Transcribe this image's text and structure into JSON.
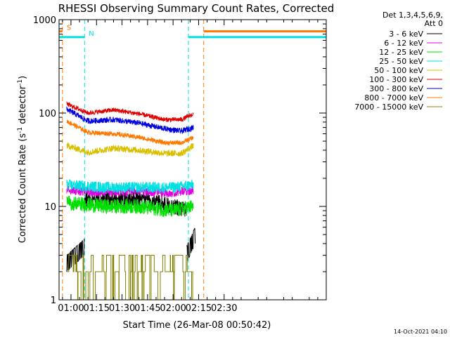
{
  "chart_data": {
    "type": "line",
    "title": "RHESSI Observing Summary Count Rates, Corrected",
    "xlabel": "Start Time (26-Mar-08 00:50:42)",
    "ylabel_main": "Corrected Count Rate (s",
    "ylabel_sup1": "-1",
    "ylabel_mid": " detector",
    "ylabel_sup2": "-1",
    "ylabel_end": ")",
    "y_scale": "log",
    "ylim": [
      1,
      1000
    ],
    "y_ticks": [
      {
        "value": 1,
        "label": "1"
      },
      {
        "value": 10,
        "label": "10"
      },
      {
        "value": 100,
        "label": "100"
      },
      {
        "value": 1000,
        "label": "1000"
      }
    ],
    "x_range_min": [
      -7,
      150
    ],
    "x_ticks": [
      {
        "value": 0,
        "label": "01:00"
      },
      {
        "value": 15,
        "label": "01:15"
      },
      {
        "value": 30,
        "label": "01:30"
      },
      {
        "value": 45,
        "label": "01:45"
      },
      {
        "value": 60,
        "label": "02:00"
      },
      {
        "value": 75,
        "label": "02:15"
      },
      {
        "value": 90,
        "label": "02:30"
      }
    ],
    "legend_header": [
      "Det 1,3,4,5,6,9,",
      "Att 0"
    ],
    "legend_position": "right",
    "series": [
      {
        "name": "3 - 6 keV",
        "color": "#000000",
        "low": [
          [
            -2.5,
            2
          ],
          [
            8,
            3
          ]
        ],
        "high": [
          [
            20,
            12
          ],
          [
            40,
            12
          ],
          [
            60,
            10
          ],
          [
            68,
            9
          ]
        ],
        "high_noise": 0.09,
        "tail": [
          [
            68,
            2.5
          ],
          [
            73,
            4
          ]
        ]
      },
      {
        "name": "6 - 12 keV",
        "color": "#e000e0",
        "high": [
          [
            -2.5,
            15
          ],
          [
            20,
            14
          ],
          [
            40,
            14.5
          ],
          [
            60,
            14
          ],
          [
            72,
            15
          ]
        ],
        "high_noise": 0.05
      },
      {
        "name": "12 - 25 keV",
        "color": "#00e000",
        "high": [
          [
            -2.5,
            11
          ],
          [
            20,
            10
          ],
          [
            40,
            10
          ],
          [
            60,
            9
          ],
          [
            72,
            10
          ]
        ],
        "high_noise": 0.08
      },
      {
        "name": "25 - 50 keV",
        "color": "#00e0e0",
        "high": [
          [
            -2.5,
            17
          ],
          [
            20,
            16
          ],
          [
            40,
            16
          ],
          [
            60,
            16
          ],
          [
            72,
            17
          ]
        ],
        "high_noise": 0.06
      },
      {
        "name": "50 - 100 keV",
        "color": "#d8c000",
        "high": [
          [
            -2.5,
            45
          ],
          [
            10,
            38
          ],
          [
            25,
            42
          ],
          [
            40,
            40
          ],
          [
            55,
            37
          ],
          [
            65,
            37
          ],
          [
            72,
            45
          ]
        ],
        "high_noise": 0.035
      },
      {
        "name": "100 - 300 keV",
        "color": "#e00000",
        "high": [
          [
            -2.5,
            125
          ],
          [
            10,
            100
          ],
          [
            25,
            108
          ],
          [
            40,
            98
          ],
          [
            55,
            85
          ],
          [
            65,
            85
          ],
          [
            72,
            98
          ]
        ],
        "high_noise": 0.025
      },
      {
        "name": "300 - 800 keV",
        "color": "#0000e0",
        "high": [
          [
            -2.5,
            110
          ],
          [
            10,
            82
          ],
          [
            25,
            85
          ],
          [
            40,
            78
          ],
          [
            55,
            68
          ],
          [
            65,
            64
          ],
          [
            72,
            70
          ]
        ],
        "high_noise": 0.03
      },
      {
        "name": "800 - 7000 keV",
        "color": "#ff7800",
        "high": [
          [
            -2.5,
            82
          ],
          [
            10,
            62
          ],
          [
            25,
            60
          ],
          [
            40,
            55
          ],
          [
            55,
            48
          ],
          [
            65,
            48
          ],
          [
            72,
            55
          ]
        ],
        "high_noise": 0.025
      },
      {
        "name": "7000 - 15000 keV",
        "color": "#808000",
        "low": [
          [
            -2.5,
            1.5
          ],
          [
            72,
            1.5
          ]
        ],
        "low_values": [
          1,
          2,
          3
        ],
        "low_noise": 1
      }
    ],
    "markers": [
      {
        "label": "S",
        "color": "#ff7800",
        "at": -5,
        "until": 78,
        "bar_value": 750
      },
      {
        "label": "N",
        "color": "#00e0e0",
        "at": 8,
        "until": 69,
        "bar_value": 650
      }
    ]
  },
  "footer": {
    "date": "14-Oct-2021 04:10"
  }
}
